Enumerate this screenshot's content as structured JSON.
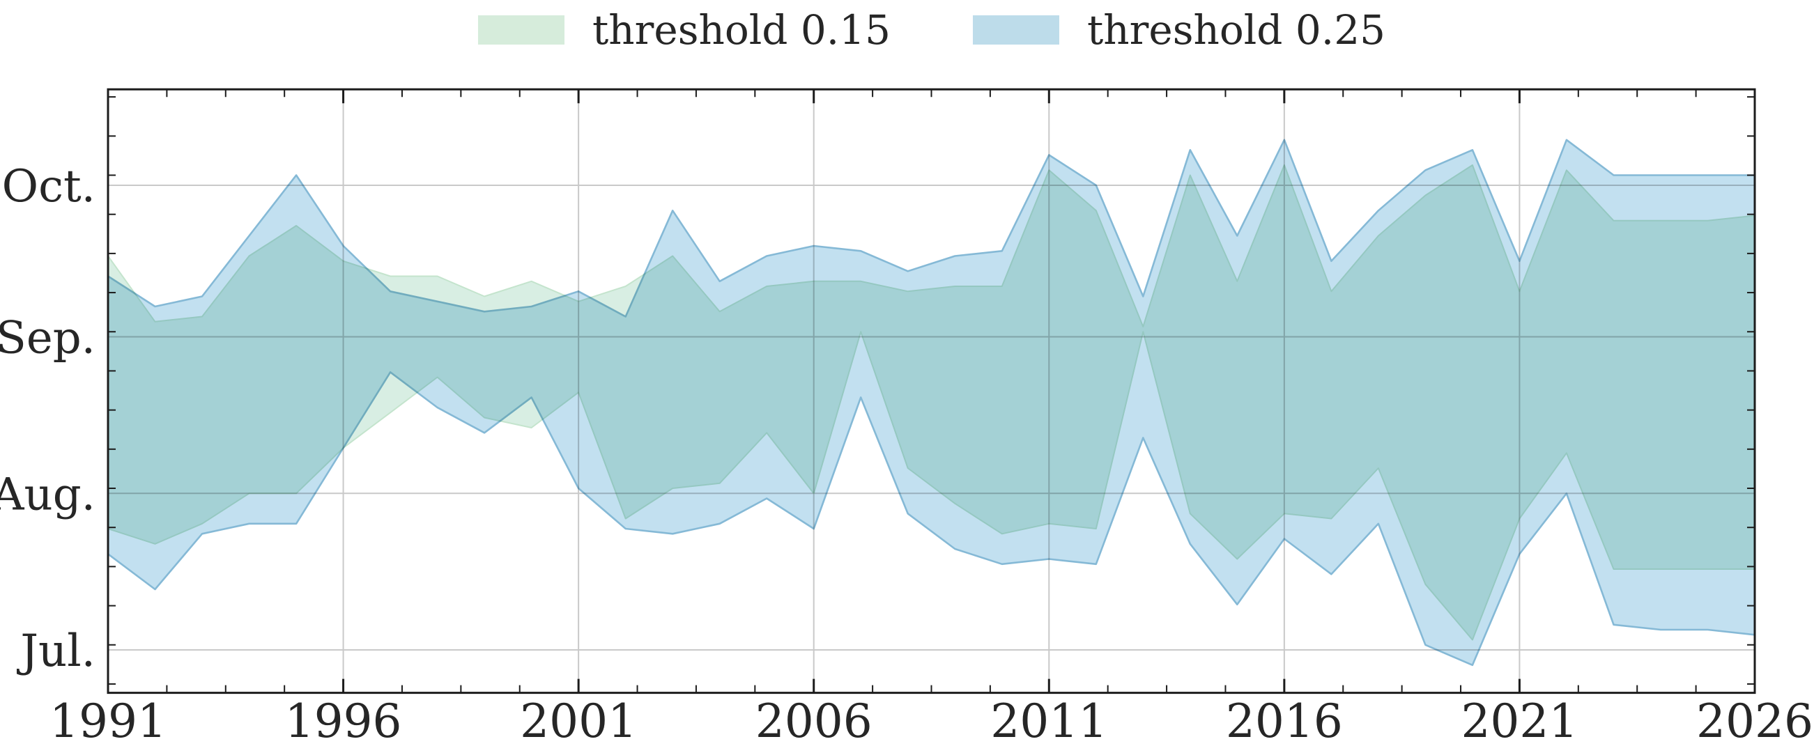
{
  "legend": {
    "items": [
      {
        "label": "threshold 0.15",
        "color": "#d6ecdb"
      },
      {
        "label": "threshold 0.25",
        "color": "#bddcea"
      }
    ]
  },
  "chart_data": {
    "type": "area",
    "title": "",
    "xlabel": "",
    "ylabel": "",
    "grid": true,
    "legend_position": "upper center",
    "xlim": [
      1991,
      2026
    ],
    "ylim_day_of_year": [
      173.5,
      293
    ],
    "x": [
      1991,
      1992,
      1993,
      1994,
      1995,
      1996,
      1997,
      1998,
      1999,
      2000,
      2001,
      2002,
      2003,
      2004,
      2005,
      2006,
      2007,
      2008,
      2009,
      2010,
      2011,
      2012,
      2013,
      2014,
      2015,
      2016,
      2017,
      2018,
      2019,
      2020,
      2021,
      2022,
      2023,
      2024,
      2025,
      2026
    ],
    "xticks_major": [
      1991,
      1996,
      2001,
      2006,
      2011,
      2016,
      2021,
      2026
    ],
    "xtick_labels": [
      "1991",
      "1996",
      "2001",
      "2006",
      "2011",
      "2016",
      "2021",
      "2026"
    ],
    "yticks_major": [
      {
        "label": "Oct.",
        "day_of_year": 274
      },
      {
        "label": "Sep.",
        "day_of_year": 244
      },
      {
        "label": "Aug.",
        "day_of_year": 213
      },
      {
        "label": "Jul.",
        "day_of_year": 182
      }
    ],
    "minor_subdivisions_x": 4,
    "minor_subdivisions_y": 4,
    "series": [
      {
        "name": "threshold 0.15",
        "fill": "#d8eee3",
        "edge": "#c4e4cd",
        "upper_day_of_year": [
          260,
          247,
          248,
          260,
          266,
          259,
          256,
          256,
          252,
          255,
          251,
          254,
          260,
          249,
          254,
          255,
          255,
          253,
          254,
          254,
          277,
          269,
          246,
          276,
          255,
          278,
          253,
          264,
          272,
          278,
          253,
          277,
          267,
          267,
          267,
          268
        ],
        "lower_day_of_year": [
          206,
          203,
          207,
          213,
          213,
          222,
          229,
          236,
          228,
          226,
          233,
          208,
          214,
          215,
          225,
          213,
          245,
          218,
          211,
          205,
          207,
          206,
          245,
          209,
          200,
          209,
          208,
          218,
          195,
          184,
          208,
          221,
          198,
          198,
          198,
          198
        ]
      },
      {
        "name": "threshold 0.25",
        "fill": "#c2e0f0",
        "edge": "#85b9d6",
        "upper_day_of_year": [
          256,
          250,
          252,
          264,
          276,
          262,
          253,
          251,
          249,
          250,
          253,
          248,
          269,
          255,
          260,
          262,
          261,
          257,
          260,
          261,
          280,
          274,
          252,
          281,
          264,
          283,
          259,
          269,
          277,
          281,
          259,
          283,
          276,
          276,
          276,
          276
        ],
        "lower_day_of_year": [
          201,
          194,
          205,
          207,
          207,
          222,
          237,
          230,
          225,
          232,
          214,
          206,
          205,
          207,
          212,
          206,
          232,
          209,
          202,
          199,
          200,
          199,
          224,
          203,
          191,
          204,
          197,
          207,
          183,
          179,
          201,
          213,
          187,
          186,
          186,
          185
        ]
      }
    ],
    "colors": {
      "overlap_teal": "#a2d2d8",
      "gridline": "#c9c9c9",
      "frame": "#1c1c1c",
      "text": "#262626",
      "background": "#ffffff"
    }
  }
}
